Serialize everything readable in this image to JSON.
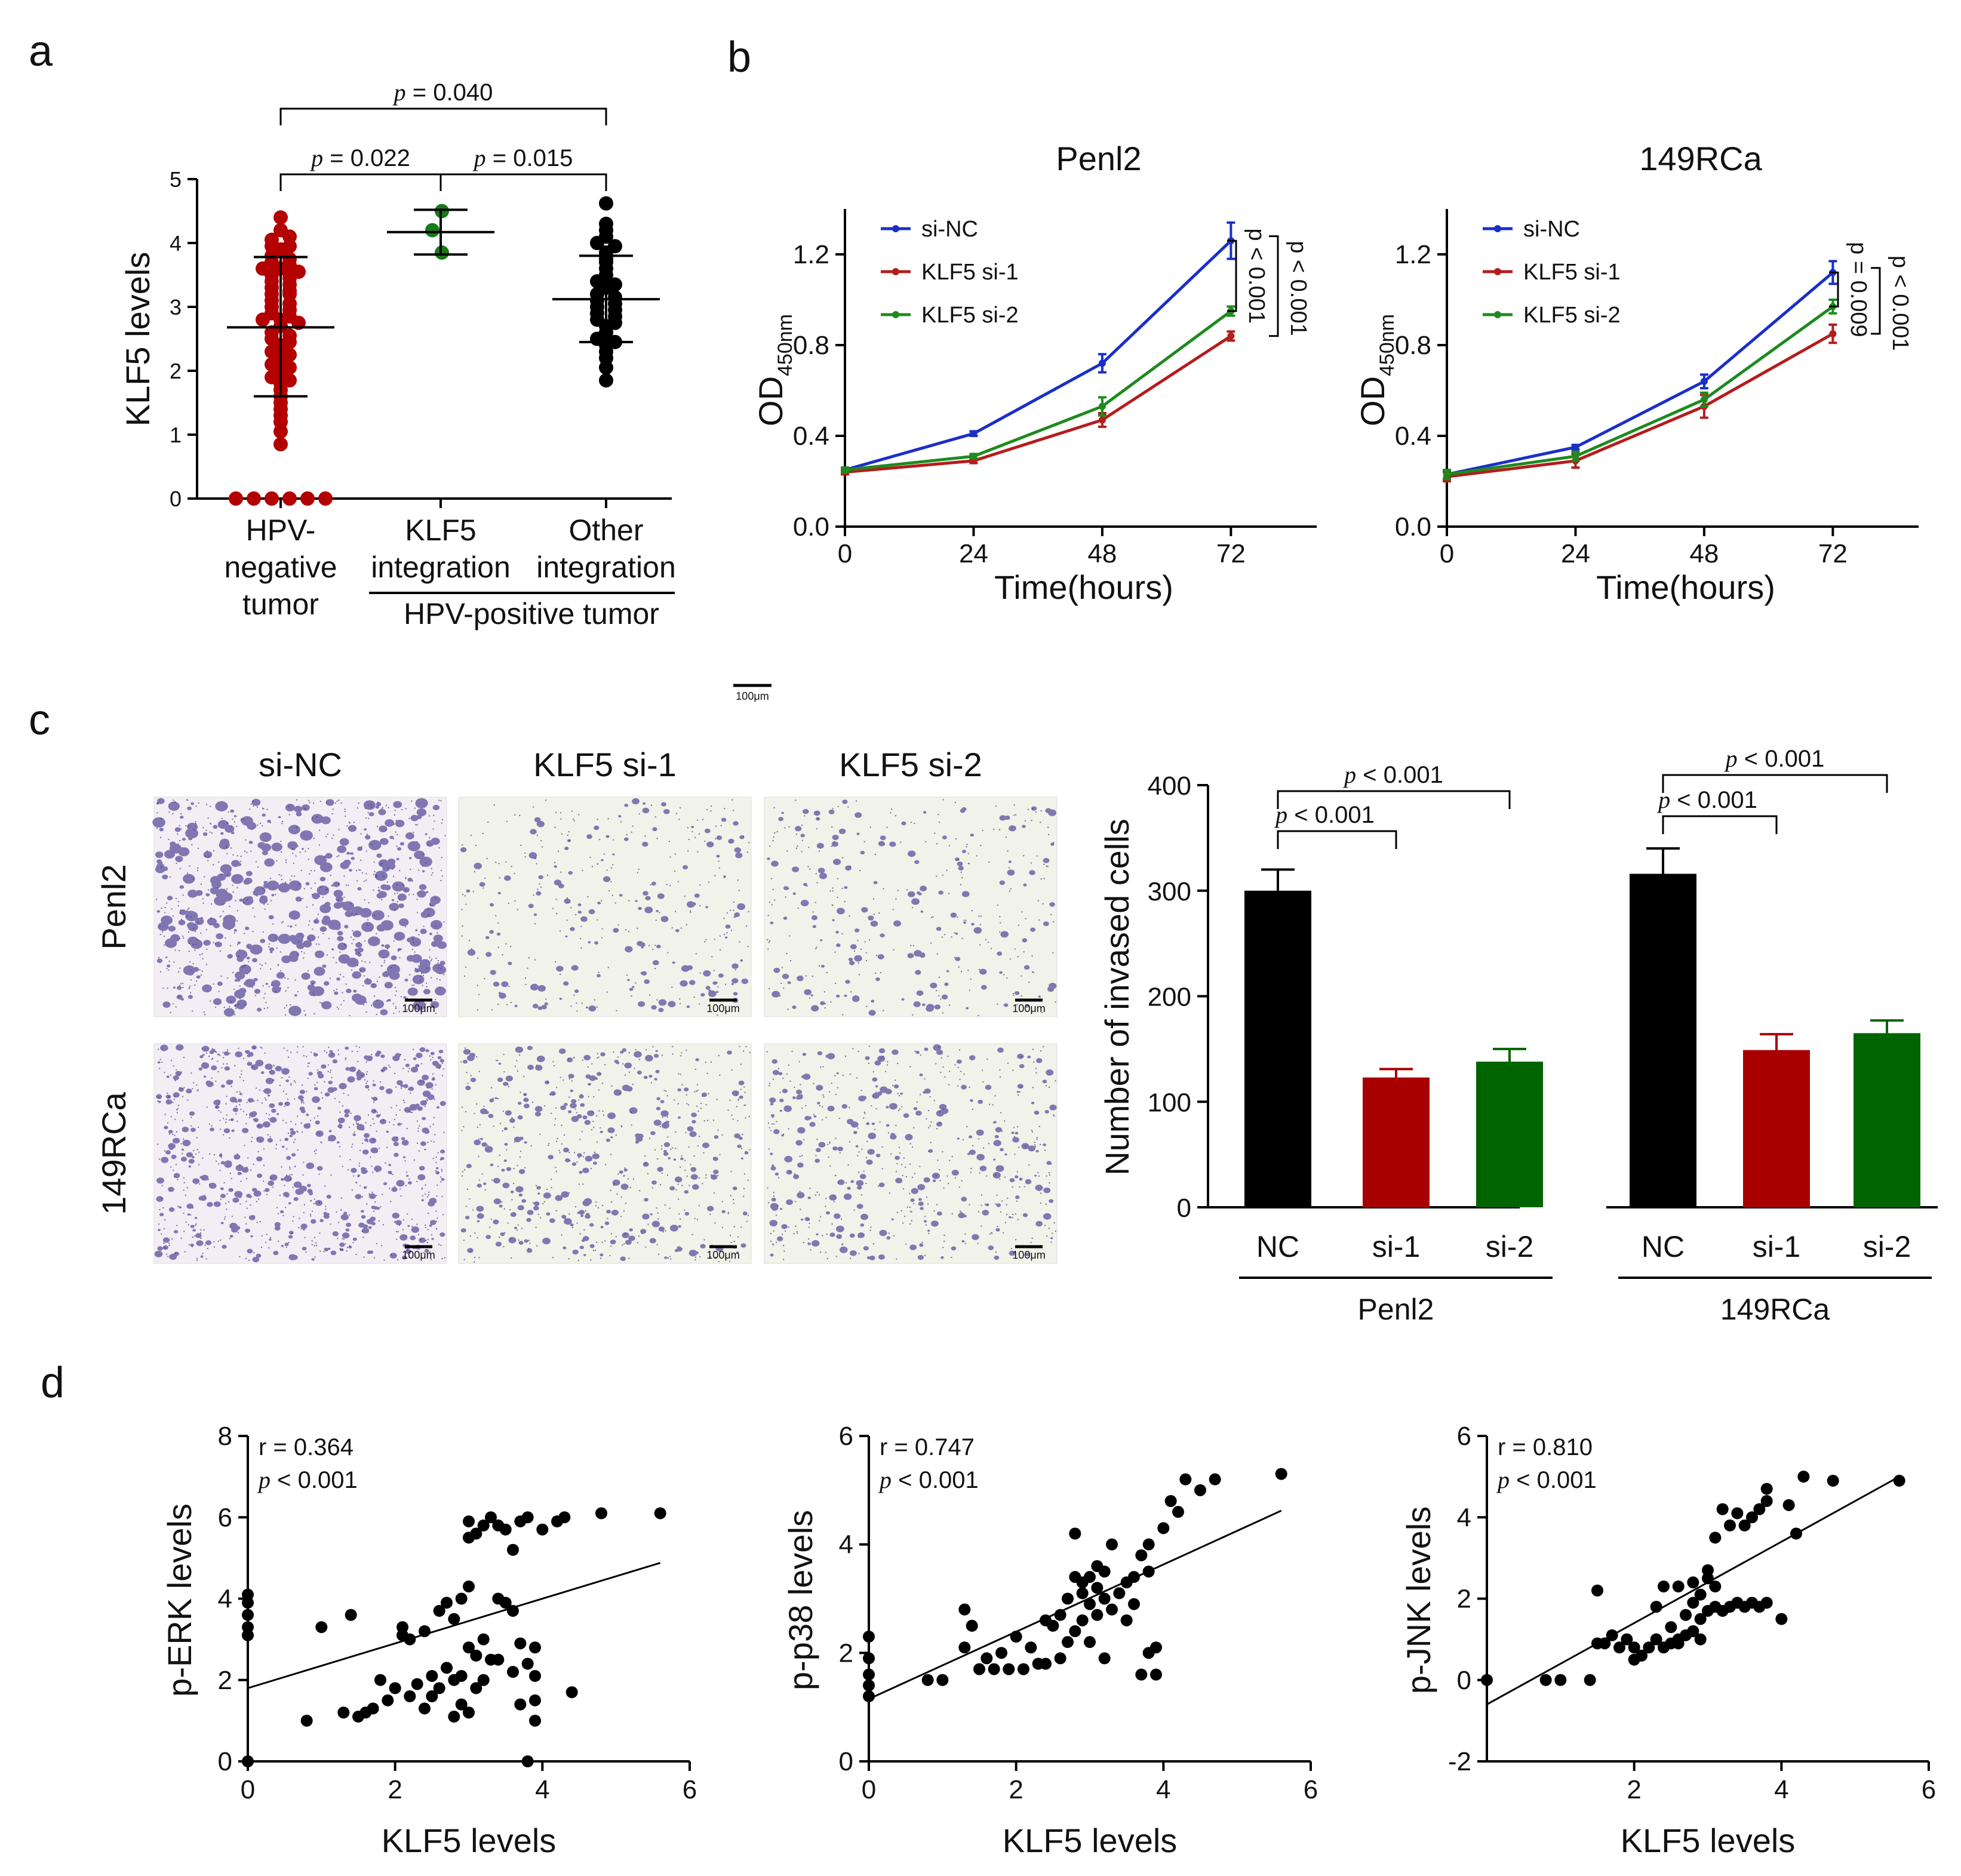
{
  "panel_labels": [
    "a",
    "b",
    "c",
    "d"
  ],
  "panel_a": {
    "ylabel": "KLF5 levels",
    "yticks": [
      "0",
      "1",
      "2",
      "3",
      "4",
      "5"
    ],
    "ylim": [
      0,
      5
    ],
    "categories": [
      [
        "HPV-",
        "negative",
        "tumor"
      ],
      [
        "KLF5",
        "integration"
      ],
      [
        "Other",
        "integration"
      ]
    ],
    "group_label": "HPV-positive tumor",
    "colors": [
      "#b30000",
      "#1a7a1a",
      "#000000"
    ],
    "groups": [
      {
        "mean": 2.68,
        "sd_low": 1.6,
        "sd_high": 3.78,
        "values": [
          4.4,
          4.2,
          4.05,
          4.1,
          3.95,
          3.95,
          3.9,
          3.8,
          3.75,
          3.7,
          3.65,
          3.6,
          3.6,
          3.55,
          3.5,
          3.45,
          3.4,
          3.35,
          3.3,
          3.25,
          3.2,
          3.2,
          3.1,
          3.05,
          3.0,
          2.95,
          2.9,
          2.85,
          2.8,
          2.8,
          2.75,
          2.7,
          2.6,
          2.55,
          2.5,
          2.45,
          2.4,
          2.3,
          2.25,
          2.2,
          2.1,
          2.05,
          2.0,
          1.9,
          1.85,
          1.8,
          1.7,
          1.6,
          1.5,
          1.4,
          1.3,
          1.2,
          1.05,
          0.85,
          0,
          0,
          0,
          0,
          0,
          0
        ]
      },
      {
        "mean": 4.17,
        "sd_low": 3.82,
        "sd_high": 4.52,
        "values": [
          4.5,
          4.2,
          3.85
        ]
      },
      {
        "mean": 3.12,
        "sd_low": 2.45,
        "sd_high": 3.8,
        "values": [
          4.62,
          4.3,
          4.2,
          4.1,
          4.0,
          3.95,
          3.85,
          3.75,
          3.7,
          3.6,
          3.5,
          3.4,
          3.35,
          3.3,
          3.2,
          3.15,
          3.1,
          3.05,
          3.0,
          2.95,
          2.9,
          2.85,
          2.8,
          2.75,
          2.7,
          2.6,
          2.5,
          2.45,
          2.4,
          2.3,
          2.2,
          2.05,
          1.85
        ]
      }
    ],
    "comparisons": [
      {
        "from": 0,
        "to": 1,
        "label": "= 0.022"
      },
      {
        "from": 1,
        "to": 2,
        "label": "= 0.015"
      },
      {
        "from": 0,
        "to": 2,
        "label": "= 0.040"
      }
    ]
  },
  "chart_data": [
    {
      "type": "line",
      "title": "Penl2",
      "xlabel": "Time(hours)",
      "ylabel": "OD",
      "ylabel_sub": "450nm",
      "x": [
        0,
        24,
        48,
        72
      ],
      "xlim": [
        0,
        88
      ],
      "ylim": [
        0,
        1.4
      ],
      "xticks": [
        "0",
        "24",
        "48",
        "72"
      ],
      "yticks": [
        "0.0",
        "0.4",
        "0.8",
        "1.2"
      ],
      "series": [
        {
          "name": "si-NC",
          "color": "#1a2fc8",
          "values": [
            0.25,
            0.41,
            0.72,
            1.26
          ],
          "err": [
            0.01,
            0.01,
            0.04,
            0.08
          ]
        },
        {
          "name": "KLF5 si-1",
          "color": "#b51c1c",
          "values": [
            0.24,
            0.29,
            0.47,
            0.84
          ],
          "err": [
            0.01,
            0.01,
            0.03,
            0.02
          ]
        },
        {
          "name": "KLF5 si-2",
          "color": "#1e8a1e",
          "values": [
            0.25,
            0.31,
            0.53,
            0.95
          ],
          "err": [
            0.01,
            0.01,
            0.04,
            0.02
          ]
        }
      ],
      "annotations": [
        "p < 0.001",
        "p < 0.001"
      ]
    },
    {
      "type": "line",
      "title": "149RCa",
      "xlabel": "Time(hours)",
      "ylabel": "OD",
      "ylabel_sub": "450nm",
      "x": [
        0,
        24,
        48,
        72
      ],
      "xlim": [
        0,
        88
      ],
      "ylim": [
        0,
        1.4
      ],
      "xticks": [
        "0",
        "24",
        "48",
        "72"
      ],
      "yticks": [
        "0.0",
        "0.4",
        "0.8",
        "1.2"
      ],
      "series": [
        {
          "name": "si-NC",
          "color": "#1a2fc8",
          "values": [
            0.23,
            0.35,
            0.64,
            1.12
          ],
          "err": [
            0.02,
            0.01,
            0.03,
            0.05
          ]
        },
        {
          "name": "KLF5 si-1",
          "color": "#b51c1c",
          "values": [
            0.22,
            0.29,
            0.53,
            0.85
          ],
          "err": [
            0.02,
            0.03,
            0.05,
            0.04
          ]
        },
        {
          "name": "KLF5 si-2",
          "color": "#1e8a1e",
          "values": [
            0.23,
            0.31,
            0.56,
            0.97
          ],
          "err": [
            0.02,
            0.02,
            0.03,
            0.03
          ]
        }
      ],
      "annotations": [
        "p = 0.009",
        "p < 0.001"
      ]
    },
    {
      "type": "bar",
      "ylabel": "Number of invased cells",
      "ylim": [
        0,
        400
      ],
      "yticks": [
        "0",
        "100",
        "200",
        "300",
        "400"
      ],
      "groups": [
        {
          "name": "Penl2",
          "categories": [
            "NC",
            "si-1",
            "si-2"
          ],
          "values": [
            300,
            123,
            138
          ],
          "err": [
            20,
            8,
            12
          ]
        },
        {
          "name": "149RCa",
          "categories": [
            "NC",
            "si-1",
            "si-2"
          ],
          "values": [
            316,
            149,
            165
          ],
          "err": [
            24,
            15,
            12
          ]
        }
      ],
      "colors": [
        "#000000",
        "#a80000",
        "#006400"
      ],
      "comparisons": [
        {
          "group": 0,
          "from": 0,
          "to": 1,
          "label": "< 0.001"
        },
        {
          "group": 0,
          "from": 0,
          "to": 2,
          "label": "< 0.001"
        },
        {
          "group": 1,
          "from": 0,
          "to": 1,
          "label": "< 0.001"
        },
        {
          "group": 1,
          "from": 0,
          "to": 2,
          "label": "< 0.001"
        }
      ]
    },
    {
      "type": "scatter",
      "xlabel": "KLF5 levels",
      "ylabel": "p-ERK levels",
      "xlim": [
        0,
        6
      ],
      "ylim": [
        0,
        8
      ],
      "xticks": [
        "0",
        "2",
        "4",
        "6"
      ],
      "yticks": [
        "0",
        "2",
        "4",
        "6",
        "8"
      ],
      "r": "r = 0.364",
      "p": "< 0.001",
      "fit": {
        "slope": 0.55,
        "intercept": 1.8
      },
      "points": [
        [
          0,
          4.1
        ],
        [
          0,
          3.9
        ],
        [
          0,
          3.6
        ],
        [
          0,
          3.3
        ],
        [
          0,
          3.1
        ],
        [
          0,
          0
        ],
        [
          0.8,
          1.0
        ],
        [
          1.0,
          3.3
        ],
        [
          1.3,
          1.2
        ],
        [
          1.4,
          3.6
        ],
        [
          1.5,
          1.1
        ],
        [
          1.6,
          1.2
        ],
        [
          1.7,
          1.3
        ],
        [
          1.8,
          2.0
        ],
        [
          1.9,
          1.5
        ],
        [
          2.0,
          1.8
        ],
        [
          2.1,
          3.3
        ],
        [
          2.1,
          3.1
        ],
        [
          2.2,
          1.6
        ],
        [
          2.3,
          1.9
        ],
        [
          2.4,
          1.3
        ],
        [
          2.4,
          3.2
        ],
        [
          2.5,
          1.6
        ],
        [
          2.5,
          2.1
        ],
        [
          2.6,
          1.8
        ],
        [
          2.6,
          3.7
        ],
        [
          2.7,
          2.3
        ],
        [
          2.7,
          3.9
        ],
        [
          2.8,
          1.1
        ],
        [
          2.8,
          2.0
        ],
        [
          2.8,
          3.5
        ],
        [
          2.9,
          1.4
        ],
        [
          2.9,
          2.1
        ],
        [
          2.9,
          4.0
        ],
        [
          3.0,
          1.2
        ],
        [
          3.0,
          2.8
        ],
        [
          3.0,
          4.3
        ],
        [
          3.0,
          5.5
        ],
        [
          3.0,
          5.9
        ],
        [
          3.1,
          1.8
        ],
        [
          3.1,
          2.6
        ],
        [
          3.1,
          5.6
        ],
        [
          3.2,
          2.0
        ],
        [
          3.2,
          3.0
        ],
        [
          3.2,
          5.8
        ],
        [
          3.3,
          2.5
        ],
        [
          3.3,
          6.0
        ],
        [
          3.4,
          2.5
        ],
        [
          3.4,
          5.8
        ],
        [
          3.5,
          3.9
        ],
        [
          3.5,
          5.7
        ],
        [
          3.6,
          2.2
        ],
        [
          3.6,
          3.7
        ],
        [
          3.6,
          5.2
        ],
        [
          3.7,
          2.9
        ],
        [
          3.7,
          5.9
        ],
        [
          3.7,
          1.4
        ],
        [
          3.8,
          2.4
        ],
        [
          3.8,
          6.0
        ],
        [
          3.8,
          0
        ],
        [
          3.9,
          2.1
        ],
        [
          3.9,
          2.8
        ],
        [
          3.9,
          1.5
        ],
        [
          3.9,
          1.0
        ],
        [
          4.0,
          5.7
        ],
        [
          4.2,
          5.9
        ],
        [
          4.3,
          6.0
        ],
        [
          4.4,
          1.7
        ],
        [
          4.8,
          6.1
        ],
        [
          5.6,
          6.1
        ],
        [
          3.4,
          4.0
        ],
        [
          2.2,
          3.0
        ]
      ]
    },
    {
      "type": "scatter",
      "xlabel": "KLF5 levels",
      "ylabel": "p-p38 levels",
      "xlim": [
        0,
        6
      ],
      "ylim": [
        0,
        6
      ],
      "xticks": [
        "0",
        "2",
        "4",
        "6"
      ],
      "yticks": [
        "0",
        "2",
        "4",
        "6"
      ],
      "r": "r = 0.747",
      "p": "< 0.001",
      "fit": {
        "slope": 0.62,
        "intercept": 1.15
      },
      "points": [
        [
          0,
          2.3
        ],
        [
          0,
          1.9
        ],
        [
          0,
          1.6
        ],
        [
          0,
          1.4
        ],
        [
          0,
          1.2
        ],
        [
          0.8,
          1.5
        ],
        [
          1.0,
          1.5
        ],
        [
          1.3,
          2.1
        ],
        [
          1.3,
          2.8
        ],
        [
          1.4,
          2.5
        ],
        [
          1.5,
          1.7
        ],
        [
          1.6,
          1.9
        ],
        [
          1.7,
          1.7
        ],
        [
          1.8,
          2.0
        ],
        [
          1.9,
          1.7
        ],
        [
          2.0,
          2.3
        ],
        [
          2.1,
          1.7
        ],
        [
          2.2,
          2.1
        ],
        [
          2.3,
          1.8
        ],
        [
          2.4,
          2.6
        ],
        [
          2.4,
          1.8
        ],
        [
          2.5,
          2.5
        ],
        [
          2.6,
          2.7
        ],
        [
          2.6,
          1.9
        ],
        [
          2.7,
          3.0
        ],
        [
          2.7,
          2.2
        ],
        [
          2.8,
          3.4
        ],
        [
          2.8,
          2.4
        ],
        [
          2.8,
          4.2
        ],
        [
          2.9,
          2.6
        ],
        [
          2.9,
          3.1
        ],
        [
          3.0,
          2.9
        ],
        [
          3.0,
          3.4
        ],
        [
          3.0,
          2.2
        ],
        [
          3.1,
          2.7
        ],
        [
          3.1,
          3.2
        ],
        [
          3.2,
          3.0
        ],
        [
          3.2,
          3.5
        ],
        [
          3.2,
          1.9
        ],
        [
          3.3,
          2.8
        ],
        [
          3.3,
          4.0
        ],
        [
          3.4,
          3.1
        ],
        [
          3.5,
          3.3
        ],
        [
          3.5,
          2.6
        ],
        [
          3.6,
          2.9
        ],
        [
          3.6,
          3.4
        ],
        [
          3.7,
          3.8
        ],
        [
          3.7,
          1.6
        ],
        [
          3.8,
          4.0
        ],
        [
          3.8,
          2.0
        ],
        [
          3.8,
          3.5
        ],
        [
          3.9,
          2.1
        ],
        [
          3.9,
          1.6
        ],
        [
          4.0,
          4.3
        ],
        [
          4.1,
          4.8
        ],
        [
          4.2,
          4.6
        ],
        [
          4.3,
          5.2
        ],
        [
          4.5,
          5.0
        ],
        [
          4.7,
          5.2
        ],
        [
          5.6,
          5.3
        ],
        [
          2.9,
          3.3
        ],
        [
          3.1,
          3.6
        ]
      ]
    },
    {
      "type": "scatter",
      "xlabel": "KLF5 levels",
      "ylabel": "p-JNK levels",
      "xlim": [
        0,
        6
      ],
      "ylim": [
        -2,
        6
      ],
      "xticks": [
        "2",
        "4",
        "6"
      ],
      "yticks": [
        "-2",
        "0",
        "2",
        "4",
        "6"
      ],
      "r": "r = 0.810",
      "p": "< 0.001",
      "fit": {
        "slope": 1.0,
        "intercept": -0.6
      },
      "points": [
        [
          0,
          0
        ],
        [
          0.8,
          0
        ],
        [
          1.0,
          0
        ],
        [
          1.4,
          0
        ],
        [
          1.5,
          0.9
        ],
        [
          1.5,
          2.2
        ],
        [
          1.6,
          0.9
        ],
        [
          1.7,
          1.1
        ],
        [
          1.8,
          0.8
        ],
        [
          1.9,
          1.0
        ],
        [
          2.0,
          0.5
        ],
        [
          2.0,
          0.8
        ],
        [
          2.1,
          0.6
        ],
        [
          2.2,
          0.8
        ],
        [
          2.3,
          1.0
        ],
        [
          2.3,
          1.8
        ],
        [
          2.4,
          0.8
        ],
        [
          2.4,
          2.3
        ],
        [
          2.5,
          0.9
        ],
        [
          2.5,
          1.3
        ],
        [
          2.6,
          1.0
        ],
        [
          2.6,
          2.3
        ],
        [
          2.7,
          1.1
        ],
        [
          2.7,
          1.6
        ],
        [
          2.8,
          1.2
        ],
        [
          2.8,
          2.4
        ],
        [
          2.8,
          1.9
        ],
        [
          2.9,
          1.5
        ],
        [
          2.9,
          2.1
        ],
        [
          3.0,
          1.7
        ],
        [
          3.0,
          2.5
        ],
        [
          3.0,
          2.7
        ],
        [
          3.1,
          1.8
        ],
        [
          3.1,
          2.3
        ],
        [
          3.1,
          3.5
        ],
        [
          3.2,
          4.2
        ],
        [
          3.2,
          1.7
        ],
        [
          3.3,
          3.8
        ],
        [
          3.3,
          1.8
        ],
        [
          3.4,
          4.1
        ],
        [
          3.4,
          1.9
        ],
        [
          3.5,
          3.8
        ],
        [
          3.5,
          1.8
        ],
        [
          3.6,
          4.0
        ],
        [
          3.6,
          1.9
        ],
        [
          3.7,
          4.2
        ],
        [
          3.7,
          1.8
        ],
        [
          3.8,
          4.4
        ],
        [
          3.8,
          1.9
        ],
        [
          3.8,
          4.7
        ],
        [
          4.0,
          1.5
        ],
        [
          4.1,
          4.3
        ],
        [
          4.2,
          3.6
        ],
        [
          4.3,
          5.0
        ],
        [
          4.7,
          4.9
        ],
        [
          5.6,
          4.9
        ],
        [
          2.6,
          0.9
        ],
        [
          2.9,
          1.0
        ]
      ]
    }
  ],
  "panel_c_images": {
    "col_titles": [
      "si-NC",
      "KLF5 si-1",
      "KLF5 si-2"
    ],
    "row_titles": [
      "Penl2",
      "149RCa"
    ],
    "scale_bar_label": "100μm",
    "stain_color": "#5a4f9c",
    "bg_colors": [
      "#f2eef4",
      "#f1f2ea"
    ],
    "densities": [
      [
        0.9,
        0.35,
        0.35
      ],
      [
        0.95,
        0.6,
        0.55
      ]
    ]
  }
}
